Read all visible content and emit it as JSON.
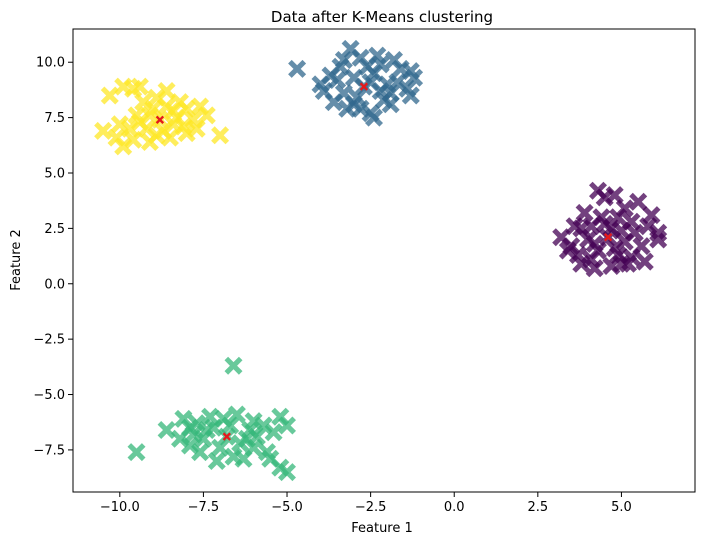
{
  "chart_data": {
    "type": "scatter",
    "title": "Data after K-Means clustering",
    "xlabel": "Feature 1",
    "ylabel": "Feature 2",
    "xlim": [
      -11.4,
      7.2
    ],
    "ylim": [
      -9.4,
      11.5
    ],
    "xticks": [
      -10.0,
      -7.5,
      -5.0,
      -2.5,
      0.0,
      2.5,
      5.0
    ],
    "xtick_labels": [
      "−10.0",
      "−7.5",
      "−5.0",
      "−2.5",
      "0.0",
      "2.5",
      "5.0"
    ],
    "yticks": [
      -7.5,
      -5.0,
      -2.5,
      0.0,
      2.5,
      5.0,
      7.5,
      10.0
    ],
    "ytick_labels": [
      "−7.5",
      "−5.0",
      "−2.5",
      "0.0",
      "2.5",
      "5.0",
      "7.5",
      "10.0"
    ],
    "grid": false,
    "marker": "X",
    "clusters": [
      {
        "color": "#440154",
        "centroid": [
          4.6,
          2.1
        ],
        "points": [
          [
            4.6,
            2.1
          ],
          [
            4.2,
            1.8
          ],
          [
            5.0,
            2.4
          ],
          [
            3.8,
            2.5
          ],
          [
            4.4,
            3.0
          ],
          [
            5.3,
            2.8
          ],
          [
            5.6,
            1.7
          ],
          [
            4.9,
            1.3
          ],
          [
            4.1,
            1.1
          ],
          [
            3.5,
            1.7
          ],
          [
            3.2,
            2.1
          ],
          [
            3.9,
            3.2
          ],
          [
            4.5,
            3.9
          ],
          [
            4.3,
            4.2
          ],
          [
            4.8,
            4.0
          ],
          [
            5.1,
            3.4
          ],
          [
            5.5,
            3.7
          ],
          [
            5.9,
            3.1
          ],
          [
            6.1,
            2.3
          ],
          [
            6.1,
            2.0
          ],
          [
            5.7,
            1.0
          ],
          [
            5.2,
            0.9
          ],
          [
            4.7,
            0.8
          ],
          [
            4.2,
            0.7
          ],
          [
            3.8,
            0.9
          ],
          [
            3.4,
            1.5
          ],
          [
            3.6,
            2.6
          ],
          [
            4.0,
            2.0
          ],
          [
            4.7,
            2.5
          ],
          [
            5.1,
            1.9
          ],
          [
            5.4,
            2.3
          ],
          [
            4.3,
            1.5
          ],
          [
            4.9,
            3.0
          ],
          [
            5.8,
            2.6
          ],
          [
            3.7,
            1.3
          ],
          [
            4.5,
            2.7
          ],
          [
            5.3,
            1.2
          ],
          [
            4.1,
            2.6
          ],
          [
            4.8,
            1.6
          ],
          [
            5.0,
            0.9
          ]
        ]
      },
      {
        "color": "#31688e",
        "centroid": [
          -2.7,
          8.9
        ],
        "points": [
          [
            -2.7,
            8.9
          ],
          [
            -3.0,
            9.3
          ],
          [
            -2.4,
            9.5
          ],
          [
            -3.3,
            8.6
          ],
          [
            -2.1,
            8.3
          ],
          [
            -3.1,
            10.6
          ],
          [
            -2.8,
            10.2
          ],
          [
            -2.3,
            10.3
          ],
          [
            -1.8,
            10.1
          ],
          [
            -1.6,
            9.7
          ],
          [
            -1.3,
            9.6
          ],
          [
            -1.2,
            9.3
          ],
          [
            -1.4,
            8.8
          ],
          [
            -1.3,
            8.5
          ],
          [
            -1.9,
            8.1
          ],
          [
            -2.4,
            7.5
          ],
          [
            -2.5,
            7.7
          ],
          [
            -3.2,
            7.9
          ],
          [
            -3.6,
            8.2
          ],
          [
            -3.9,
            8.7
          ],
          [
            -3.5,
            9.2
          ],
          [
            -4.7,
            9.7
          ],
          [
            -2.6,
            9.8
          ],
          [
            -2.0,
            9.0
          ],
          [
            -3.4,
            9.8
          ],
          [
            -2.9,
            8.4
          ],
          [
            -2.2,
            8.7
          ],
          [
            -1.7,
            9.1
          ],
          [
            -3.7,
            9.4
          ],
          [
            -3.0,
            8.1
          ],
          [
            -2.5,
            9.1
          ],
          [
            -2.2,
            9.9
          ],
          [
            -3.3,
            10.1
          ],
          [
            -1.9,
            8.6
          ],
          [
            -2.8,
            7.9
          ],
          [
            -4.0,
            9.0
          ]
        ]
      },
      {
        "color": "#35b779",
        "centroid": [
          -6.8,
          -6.9
        ],
        "points": [
          [
            -6.8,
            -6.9
          ],
          [
            -7.2,
            -6.5
          ],
          [
            -6.4,
            -7.2
          ],
          [
            -7.5,
            -7.0
          ],
          [
            -6.1,
            -6.6
          ],
          [
            -6.6,
            -3.7
          ],
          [
            -9.5,
            -7.6
          ],
          [
            -8.6,
            -6.6
          ],
          [
            -8.1,
            -6.1
          ],
          [
            -7.7,
            -6.3
          ],
          [
            -7.3,
            -6.0
          ],
          [
            -6.9,
            -6.1
          ],
          [
            -6.5,
            -5.9
          ],
          [
            -6.0,
            -6.2
          ],
          [
            -5.7,
            -6.4
          ],
          [
            -5.2,
            -6.0
          ],
          [
            -5.0,
            -6.4
          ],
          [
            -5.6,
            -7.6
          ],
          [
            -5.5,
            -7.9
          ],
          [
            -5.2,
            -8.3
          ],
          [
            -5.0,
            -8.5
          ],
          [
            -6.3,
            -7.9
          ],
          [
            -6.6,
            -7.8
          ],
          [
            -7.1,
            -8.0
          ],
          [
            -7.6,
            -7.6
          ],
          [
            -7.9,
            -7.3
          ],
          [
            -8.2,
            -7.0
          ],
          [
            -7.8,
            -6.8
          ],
          [
            -7.0,
            -7.4
          ],
          [
            -6.2,
            -7.0
          ],
          [
            -5.9,
            -6.9
          ],
          [
            -7.4,
            -6.6
          ],
          [
            -6.7,
            -6.4
          ],
          [
            -7.9,
            -6.5
          ],
          [
            -6.0,
            -7.4
          ],
          [
            -5.4,
            -6.7
          ]
        ]
      },
      {
        "color": "#fde725",
        "centroid": [
          -8.8,
          7.4
        ],
        "points": [
          [
            -8.8,
            7.4
          ],
          [
            -9.2,
            7.0
          ],
          [
            -8.4,
            7.8
          ],
          [
            -9.0,
            7.9
          ],
          [
            -8.1,
            7.1
          ],
          [
            -9.6,
            8.8
          ],
          [
            -9.9,
            8.9
          ],
          [
            -10.3,
            8.5
          ],
          [
            -9.4,
            8.9
          ],
          [
            -8.6,
            8.7
          ],
          [
            -8.2,
            8.2
          ],
          [
            -7.6,
            8.0
          ],
          [
            -7.4,
            7.6
          ],
          [
            -7.7,
            7.0
          ],
          [
            -7.0,
            6.7
          ],
          [
            -8.0,
            6.8
          ],
          [
            -8.5,
            6.6
          ],
          [
            -9.1,
            6.4
          ],
          [
            -9.6,
            6.5
          ],
          [
            -9.9,
            6.2
          ],
          [
            -10.1,
            6.6
          ],
          [
            -10.5,
            6.9
          ],
          [
            -10.0,
            7.2
          ],
          [
            -9.5,
            7.6
          ],
          [
            -9.3,
            8.2
          ],
          [
            -8.9,
            8.4
          ],
          [
            -8.3,
            7.5
          ],
          [
            -8.0,
            7.9
          ],
          [
            -8.7,
            6.9
          ],
          [
            -9.4,
            7.3
          ],
          [
            -7.8,
            7.4
          ],
          [
            -8.6,
            8.0
          ],
          [
            -9.1,
            7.6
          ],
          [
            -8.4,
            7.2
          ],
          [
            -9.7,
            7.0
          ],
          [
            -8.9,
            6.7
          ]
        ]
      }
    ]
  }
}
